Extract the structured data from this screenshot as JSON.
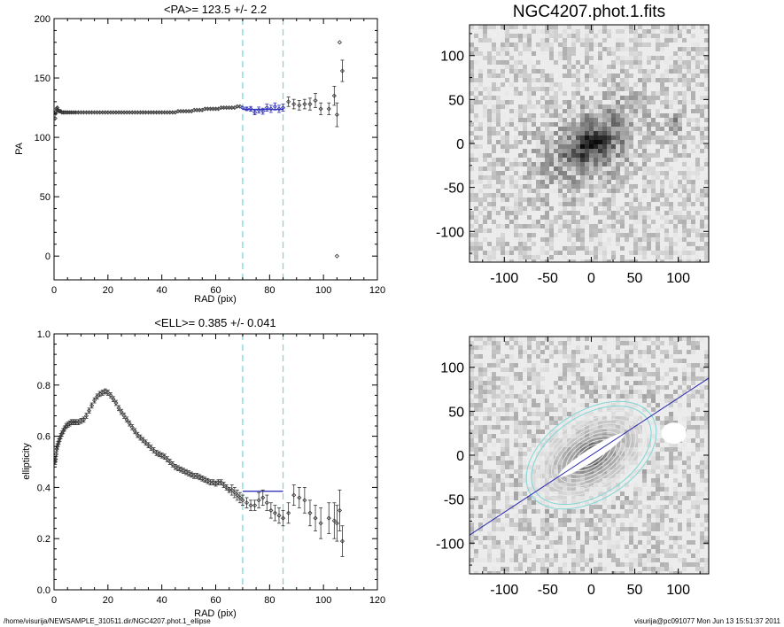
{
  "footer": {
    "path": "/home/visurija/NEWSAMPLE_310511.dir/NGC4207.phot.1_ellipse",
    "stamp": "visurija@pc091077  Mon Jun 13 15:51:37 2011"
  },
  "chart_data": [
    {
      "type": "scatter",
      "title": "<PA>= 123.5 +/-   2.2",
      "xlabel": "RAD (pix)",
      "ylabel": "PA",
      "xlim": [
        0,
        120
      ],
      "ylim": [
        -20,
        200
      ],
      "xticks": [
        "0",
        "20",
        "40",
        "60",
        "80",
        "100",
        "120"
      ],
      "yticks": [
        "0",
        "50",
        "100",
        "150",
        "200"
      ],
      "vlines": [
        70,
        85
      ],
      "fit_line": {
        "value": 123.5,
        "x0": 70,
        "x1": 85
      },
      "points_x": [
        0.4,
        0.6,
        0.8,
        1.0,
        1.2,
        1.5,
        1.8,
        2.1,
        2.5,
        2.9,
        3.4,
        3.9,
        4.5,
        5.1,
        5.8,
        6.5,
        7.3,
        8.1,
        9.0,
        10.0,
        11.0,
        12.0,
        13.0,
        14.0,
        15.0,
        16.0,
        17.0,
        18.0,
        19.0,
        20.0,
        21.0,
        22.0,
        23.0,
        24.0,
        25.0,
        26.0,
        27.0,
        28.0,
        29.0,
        30.0,
        31.0,
        32.0,
        33.0,
        34.0,
        35.0,
        36.0,
        37.0,
        38.0,
        39.0,
        40.0,
        41.0,
        42.0,
        43.0,
        44.0,
        45.0,
        46.0,
        47.0,
        48.0,
        49.0,
        50.0,
        51.0,
        52.0,
        53.0,
        54.0,
        55.0,
        56.0,
        57.0,
        58.0,
        59.0,
        60.0,
        61.0,
        62.0,
        63.0,
        64.0,
        65.0,
        66.0,
        67.0,
        68.0,
        69.0,
        70.0,
        71.5,
        73.0,
        74.5,
        76.0,
        77.5,
        79.0,
        80.5,
        82.0,
        83.5,
        85.0,
        87.0,
        89.0,
        91.0,
        93.0,
        95.0,
        97.0,
        99.0,
        102.0,
        104.0,
        105.0,
        106.0,
        107.0
      ],
      "points_y": [
        116,
        120,
        122,
        124,
        125,
        123,
        122,
        122,
        122,
        121,
        121,
        121,
        121,
        121,
        121,
        121,
        121,
        121,
        121,
        121,
        121,
        121,
        121,
        121,
        121,
        121,
        121,
        121,
        121,
        121,
        121,
        121,
        121,
        121,
        121,
        121,
        121,
        121,
        121,
        121,
        121,
        121,
        121,
        121,
        121,
        121,
        121,
        121,
        121,
        121,
        121,
        121,
        121,
        121,
        121,
        122,
        122,
        122,
        122,
        122,
        122,
        123,
        123,
        123,
        123,
        124,
        124,
        124,
        124,
        124,
        124,
        125,
        125,
        125,
        125,
        125,
        125,
        126,
        126,
        125,
        124,
        124,
        121,
        123,
        122,
        125,
        124,
        126,
        124,
        125,
        130,
        128,
        127,
        128,
        128,
        131,
        124,
        124,
        135,
        119,
        180,
        156
      ],
      "points_err": [
        1,
        1,
        1,
        1,
        1,
        1,
        1,
        1,
        1,
        1,
        1,
        1,
        1,
        1,
        1,
        1,
        1,
        1,
        1,
        1,
        1,
        1,
        1,
        1,
        1,
        1,
        1,
        1,
        1,
        1,
        1,
        1,
        1,
        1,
        1,
        1,
        1,
        1,
        1,
        1,
        1,
        1,
        1,
        1,
        1,
        1,
        1,
        1,
        1,
        1,
        1,
        1,
        1,
        1,
        1,
        1,
        1,
        1,
        1,
        1,
        1,
        1,
        1,
        1,
        1,
        1,
        1,
        1,
        1,
        1,
        1,
        1,
        1,
        1,
        1,
        1,
        1,
        1,
        1,
        1,
        1.5,
        2,
        2,
        2.5,
        2.5,
        3,
        3,
        3,
        3,
        3,
        4,
        4,
        4,
        4,
        5,
        6,
        5,
        5,
        8,
        10,
        0,
        9
      ],
      "outlier": {
        "x": 105,
        "y": 0
      }
    },
    {
      "type": "scatter",
      "title": "<ELL>= 0.385 +/-  0.041",
      "xlabel": "RAD (pix)",
      "ylabel": "ellipticity",
      "xlim": [
        0,
        120
      ],
      "ylim": [
        0,
        1
      ],
      "xticks": [
        "0",
        "20",
        "40",
        "60",
        "80",
        "100",
        "120"
      ],
      "yticks": [
        "0.0",
        "0.2",
        "0.4",
        "0.6",
        "0.8",
        "1.0"
      ],
      "vlines": [
        70,
        85
      ],
      "fit_line": {
        "value": 0.385,
        "x0": 70,
        "x1": 85
      },
      "points_x": [
        0.4,
        0.6,
        0.8,
        1.0,
        1.2,
        1.5,
        1.8,
        2.1,
        2.5,
        2.9,
        3.4,
        3.9,
        4.5,
        5.1,
        5.8,
        6.5,
        7.3,
        8.1,
        9.0,
        10.0,
        11.0,
        12.0,
        13.0,
        14.0,
        15.0,
        16.0,
        17.0,
        18.0,
        19.0,
        20.0,
        21.0,
        22.0,
        23.0,
        24.0,
        25.0,
        26.0,
        27.0,
        28.0,
        29.0,
        30.0,
        31.0,
        32.0,
        33.0,
        34.0,
        35.0,
        36.0,
        37.0,
        38.0,
        39.0,
        40.0,
        41.0,
        42.0,
        43.0,
        44.0,
        45.0,
        46.0,
        47.0,
        48.0,
        49.0,
        50.0,
        51.0,
        52.0,
        53.0,
        54.0,
        55.0,
        56.0,
        57.0,
        58.0,
        59.0,
        60.0,
        61.0,
        62.0,
        63.0,
        64.0,
        65.0,
        66.0,
        67.0,
        68.0,
        69.0,
        70.0,
        71.5,
        73.0,
        74.5,
        76.0,
        77.5,
        79.0,
        80.5,
        82.0,
        83.5,
        85.0,
        87.0,
        89.0,
        91.0,
        93.0,
        95.0,
        97.0,
        99.0,
        102.0,
        104.0,
        105.0,
        106.0,
        107.0
      ],
      "points_y": [
        0.5,
        0.51,
        0.53,
        0.55,
        0.56,
        0.57,
        0.58,
        0.59,
        0.6,
        0.61,
        0.62,
        0.63,
        0.64,
        0.645,
        0.65,
        0.655,
        0.655,
        0.655,
        0.655,
        0.66,
        0.665,
        0.68,
        0.7,
        0.72,
        0.74,
        0.755,
        0.765,
        0.77,
        0.775,
        0.77,
        0.76,
        0.745,
        0.73,
        0.71,
        0.695,
        0.68,
        0.665,
        0.65,
        0.635,
        0.62,
        0.605,
        0.595,
        0.585,
        0.575,
        0.565,
        0.555,
        0.545,
        0.535,
        0.53,
        0.525,
        0.52,
        0.51,
        0.5,
        0.49,
        0.48,
        0.475,
        0.47,
        0.465,
        0.46,
        0.455,
        0.45,
        0.445,
        0.445,
        0.44,
        0.435,
        0.43,
        0.425,
        0.42,
        0.42,
        0.415,
        0.42,
        0.42,
        0.41,
        0.4,
        0.39,
        0.39,
        0.38,
        0.37,
        0.36,
        0.35,
        0.34,
        0.33,
        0.33,
        0.35,
        0.36,
        0.34,
        0.31,
        0.3,
        0.29,
        0.28,
        0.3,
        0.37,
        0.36,
        0.35,
        0.3,
        0.28,
        0.26,
        0.28,
        0.27,
        0.26,
        0.31,
        0.19
      ],
      "points_err": [
        0.01,
        0.01,
        0.01,
        0.01,
        0.01,
        0.01,
        0.01,
        0.01,
        0.01,
        0.01,
        0.01,
        0.01,
        0.01,
        0.01,
        0.01,
        0.01,
        0.01,
        0.01,
        0.01,
        0.01,
        0.01,
        0.01,
        0.01,
        0.01,
        0.01,
        0.01,
        0.01,
        0.01,
        0.01,
        0.01,
        0.01,
        0.01,
        0.01,
        0.01,
        0.01,
        0.01,
        0.01,
        0.01,
        0.01,
        0.01,
        0.01,
        0.01,
        0.01,
        0.01,
        0.01,
        0.01,
        0.01,
        0.01,
        0.01,
        0.01,
        0.01,
        0.01,
        0.01,
        0.01,
        0.01,
        0.01,
        0.01,
        0.01,
        0.01,
        0.01,
        0.01,
        0.01,
        0.01,
        0.01,
        0.01,
        0.01,
        0.01,
        0.01,
        0.01,
        0.01,
        0.01,
        0.01,
        0.01,
        0.01,
        0.01,
        0.02,
        0.02,
        0.02,
        0.02,
        0.02,
        0.02,
        0.02,
        0.02,
        0.03,
        0.03,
        0.03,
        0.03,
        0.03,
        0.03,
        0.03,
        0.04,
        0.04,
        0.04,
        0.05,
        0.05,
        0.05,
        0.06,
        0.06,
        0.07,
        0.07,
        0.08,
        0.06
      ]
    },
    {
      "type": "heatmap",
      "title": "NGC4207.phot.1.fits",
      "xlim": [
        -140,
        135
      ],
      "ylim": [
        -135,
        135
      ],
      "xticks": [
        "-100",
        "-50",
        "0",
        "50",
        "100"
      ],
      "yticks": [
        "100",
        "50",
        "0",
        "-50",
        "-100"
      ],
      "colormap": "grayscale-inverted",
      "galaxy": {
        "pa_deg": 33,
        "ellipticity": 0.385,
        "center": [
          0,
          0
        ]
      }
    },
    {
      "type": "heatmap",
      "xlim": [
        -140,
        135
      ],
      "ylim": [
        -135,
        135
      ],
      "xticks": [
        "-100",
        "-50",
        "0",
        "50",
        "100"
      ],
      "yticks": [
        "100",
        "50",
        "0",
        "-50",
        "-100"
      ],
      "contours": {
        "count": 12,
        "color": "#e6e6e6",
        "outer_color": "#7fd6d6"
      },
      "major_axis_line_color": "#2a2ab0"
    }
  ]
}
